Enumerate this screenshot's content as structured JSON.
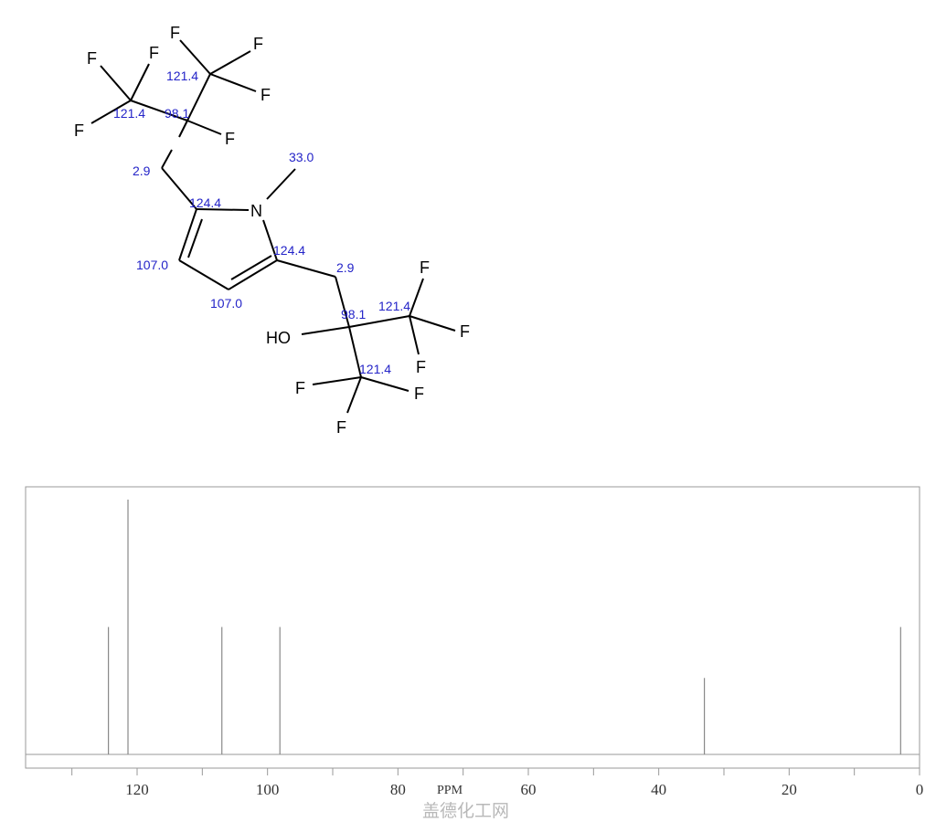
{
  "molecule": {
    "atoms": {
      "N": "N",
      "HO": "HO",
      "F": "F"
    },
    "shift_labels": [
      "121.4",
      "121.4",
      "98.1",
      "2.9",
      "33.0",
      "124.4",
      "107.0",
      "107.0",
      "124.4",
      "2.9",
      "98.1",
      "121.4",
      "121.4"
    ]
  },
  "chart_data": {
    "type": "bar",
    "title": "",
    "xlabel": "PPM",
    "ylabel": "",
    "xlim": [
      137,
      0
    ],
    "x_reversed": true,
    "xticks_major": [
      120,
      100,
      80,
      60,
      40,
      20,
      0
    ],
    "xtick_labels": [
      "120",
      "100",
      "80",
      "60",
      "40",
      "20",
      "0"
    ],
    "xticks_minor_step": 10,
    "grid": false,
    "line_color": "#888888",
    "peaks": [
      {
        "ppm": 124.4,
        "intensity": 0.5
      },
      {
        "ppm": 121.4,
        "intensity": 1.0
      },
      {
        "ppm": 107.0,
        "intensity": 0.5
      },
      {
        "ppm": 98.1,
        "intensity": 0.5
      },
      {
        "ppm": 33.0,
        "intensity": 0.3
      },
      {
        "ppm": 2.9,
        "intensity": 0.5
      }
    ]
  },
  "watermark": "盖德化工网"
}
